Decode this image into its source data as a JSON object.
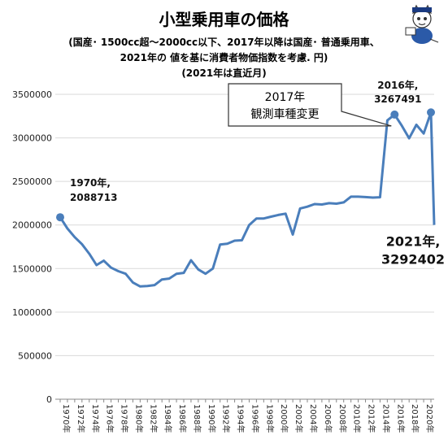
{
  "chart_data": {
    "type": "line",
    "title": "小型乗用車の価格",
    "subtitle_lines": [
      "(国産･ 1500cc超〜2000cc以下、2017年以降は国産･ 普通乗用車、",
      "2021年の 値を基に消費者物価指数を考慮. 円)",
      "(2021年は直近月)"
    ],
    "ylim": [
      0,
      3500000
    ],
    "yticks": [
      0,
      500000,
      1000000,
      1500000,
      2000000,
      2500000,
      3000000,
      3500000
    ],
    "x": [
      1970,
      1971,
      1972,
      1973,
      1974,
      1975,
      1976,
      1977,
      1978,
      1979,
      1980,
      1981,
      1982,
      1983,
      1984,
      1985,
      1986,
      1987,
      1988,
      1989,
      1990,
      1991,
      1992,
      1993,
      1994,
      1995,
      1996,
      1997,
      1998,
      1999,
      2000,
      2001,
      2002,
      2003,
      2004,
      2005,
      2006,
      2007,
      2008,
      2009,
      2010,
      2011,
      2012,
      2013,
      2014,
      2015,
      2016,
      2017,
      2018,
      2019,
      2020,
      2021
    ],
    "xtick_labels": [
      "1970年",
      "1972年",
      "1974年",
      "1976年",
      "1978年",
      "1980年",
      "1982年",
      "1984年",
      "1986年",
      "1988年",
      "1990年",
      "1992年",
      "1994年",
      "1996年",
      "1998年",
      "2000年",
      "2002年",
      "2004年",
      "2006年",
      "2008年",
      "2010年",
      "2012年",
      "2014年",
      "2016年",
      "2018年",
      "2020年"
    ],
    "series": [
      {
        "color": "#4a7ebb",
        "values": [
          2088713,
          1960000,
          1860000,
          1780000,
          1670000,
          1540000,
          1590000,
          1510000,
          1470000,
          1440000,
          1340000,
          1295000,
          1300000,
          1310000,
          1375000,
          1385000,
          1440000,
          1450000,
          1595000,
          1490000,
          1440000,
          1500000,
          1775000,
          1785000,
          1820000,
          1825000,
          2000000,
          2075000,
          2075000,
          2095000,
          2115000,
          2130000,
          1890000,
          2190000,
          2210000,
          2240000,
          2235000,
          2250000,
          2245000,
          2260000,
          2325000,
          2325000,
          2320000,
          2315000,
          2318000,
          3200000,
          3267491,
          3140000,
          2995000,
          3150000,
          3050000,
          3292402
        ]
      }
    ],
    "annotations": [
      {
        "year": 1970,
        "line1": "1970年,",
        "line2": "2088713"
      },
      {
        "year": 2016,
        "line1": "2016年,",
        "line2": "3267491"
      },
      {
        "year": 2021,
        "line1": "2021年,",
        "line2": "3292402"
      }
    ],
    "callout": {
      "line1": "2017年",
      "line2": "観測車種変更"
    },
    "grid": true,
    "legend": "none"
  }
}
